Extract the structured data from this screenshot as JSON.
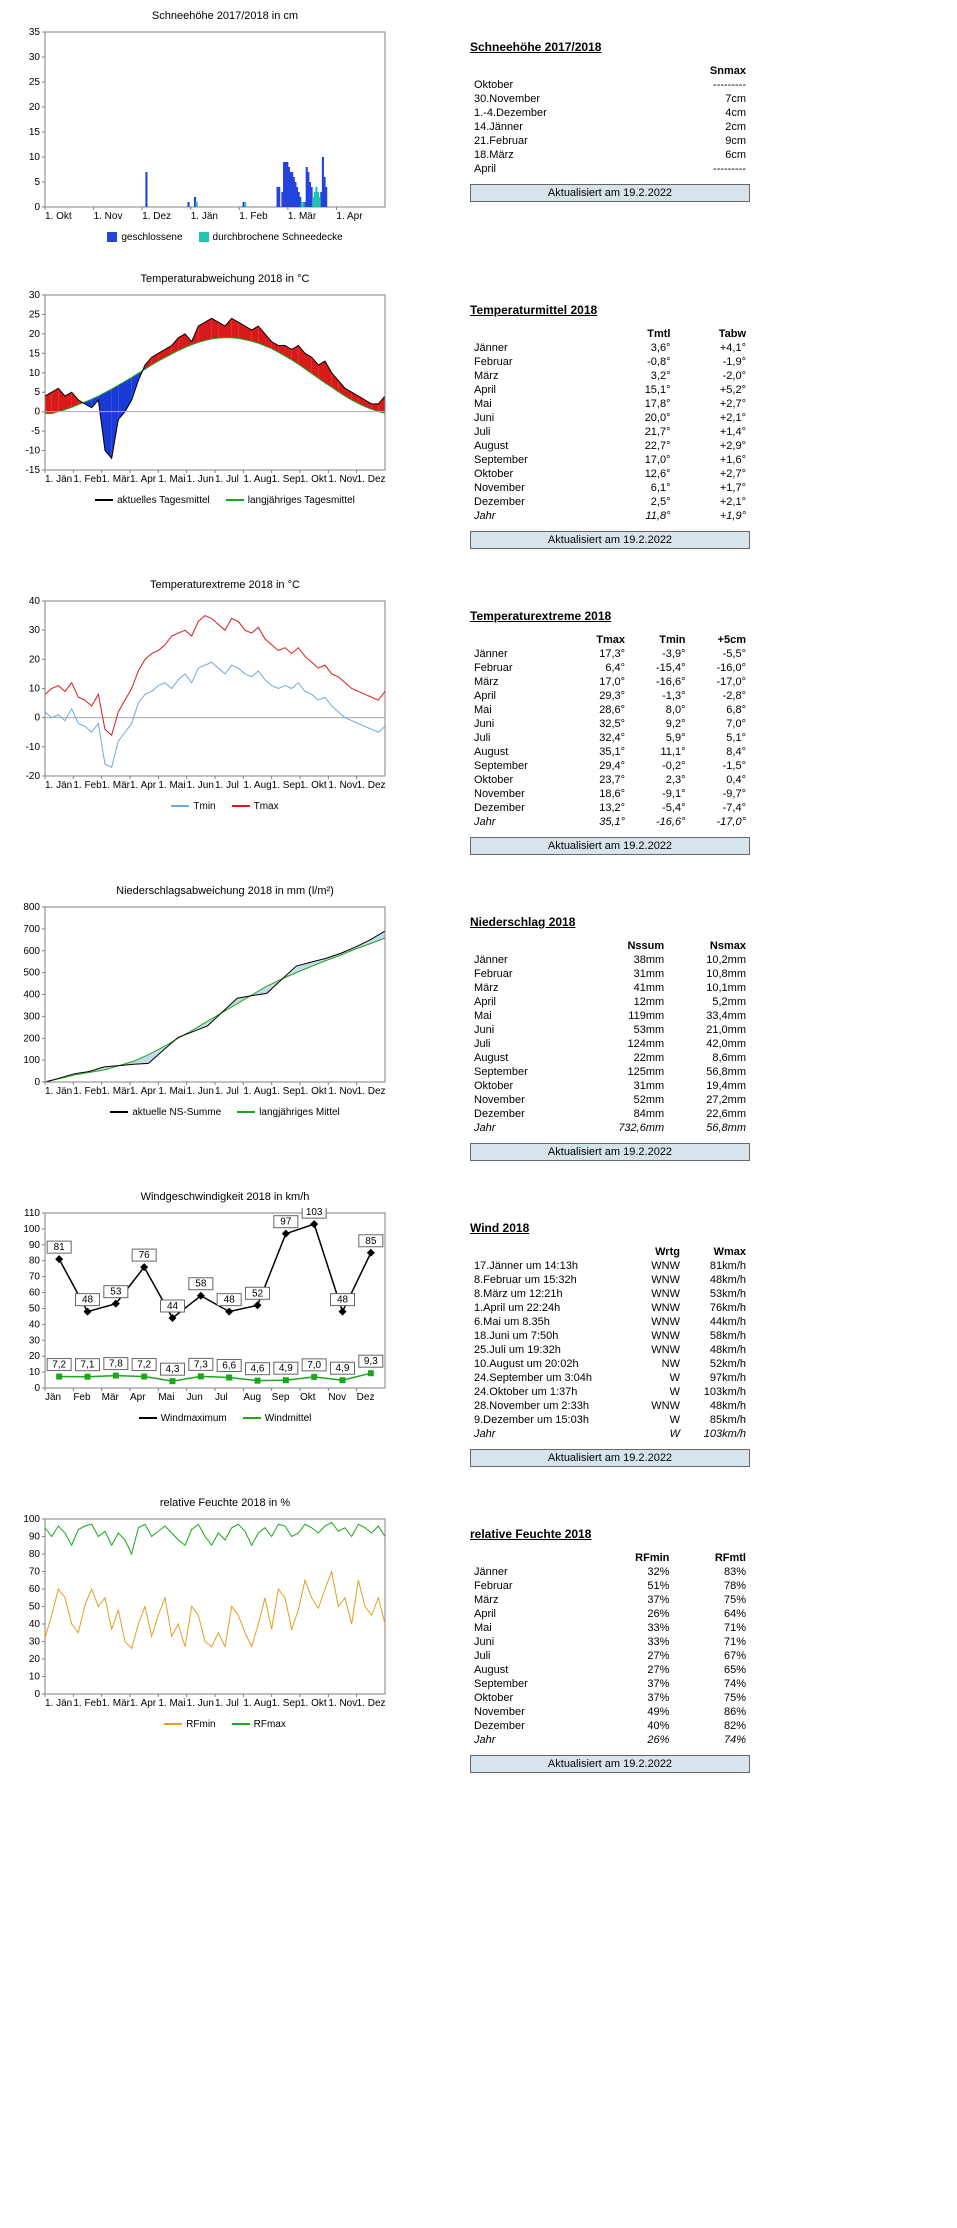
{
  "update_text": "Aktualisiert am 19.2.2022",
  "months_short": [
    "Jän",
    "Feb",
    "Mär",
    "Apr",
    "Mai",
    "Jun",
    "Jul",
    "Aug",
    "Sep",
    "Okt",
    "Nov",
    "Dez"
  ],
  "months_1": [
    "1. Jän",
    "1. Feb",
    "1. Mär",
    "1. Apr",
    "1. Mai",
    "1. Jun",
    "1. Jul",
    "1. Aug",
    "1. Sep",
    "1. Okt",
    "1. Nov",
    "1. Dez"
  ],
  "snow": {
    "chart_title": "Schneehöhe 2017/2018 in cm",
    "ylim": [
      0,
      35
    ],
    "ytick": 5,
    "xlabels": [
      "1. Okt",
      "1. Nov",
      "1. Dez",
      "1. Jän",
      "1. Feb",
      "1. Mär",
      "1. Apr"
    ],
    "closed_color": "#2244dd",
    "broken_color": "#20c4b0",
    "bars_closed": [
      [
        62,
        7
      ],
      [
        88,
        1
      ],
      [
        92,
        2
      ],
      [
        122,
        1
      ],
      [
        143,
        4
      ],
      [
        144,
        4
      ],
      [
        146,
        3
      ],
      [
        147,
        9
      ],
      [
        148,
        9
      ],
      [
        149,
        9
      ],
      [
        150,
        8
      ],
      [
        151,
        7
      ],
      [
        152,
        7
      ],
      [
        153,
        6
      ],
      [
        154,
        5
      ],
      [
        155,
        4
      ],
      [
        156,
        3
      ],
      [
        157,
        2
      ],
      [
        160,
        1
      ],
      [
        161,
        8
      ],
      [
        162,
        7
      ],
      [
        163,
        5
      ],
      [
        164,
        4
      ],
      [
        170,
        3
      ],
      [
        171,
        10
      ],
      [
        172,
        6
      ],
      [
        173,
        4
      ]
    ],
    "bars_broken": [
      [
        93,
        1
      ],
      [
        123,
        1
      ],
      [
        158,
        1
      ],
      [
        159,
        1
      ],
      [
        165,
        2
      ],
      [
        166,
        3
      ],
      [
        167,
        4
      ],
      [
        168,
        3
      ],
      [
        169,
        2
      ]
    ],
    "legend": [
      [
        "geschlossene",
        "#2244dd"
      ],
      [
        "durchbrochene Schneedecke",
        "#20c4b0"
      ]
    ],
    "table_title": "Schneehöhe 2017/2018",
    "cols": [
      "",
      "Snmax"
    ],
    "rows": [
      [
        "Oktober",
        "---------"
      ],
      [
        "30.November",
        "7cm"
      ],
      [
        "1.-4.Dezember",
        "4cm"
      ],
      [
        "14.Jänner",
        "2cm"
      ],
      [
        "21.Februar",
        "9cm"
      ],
      [
        "18.März",
        "6cm"
      ],
      [
        "April",
        "---------"
      ]
    ]
  },
  "tempdev": {
    "chart_title": "Temperaturabweichung  2018 in °C",
    "ylim": [
      -15,
      30
    ],
    "ytick": 5,
    "actual_color": "#000000",
    "avg_color": "#1aa81a",
    "pos_fill": "#d81a1a",
    "neg_fill": "#1a3ad8",
    "normal": [
      -0.5,
      -0.5,
      0,
      0.5,
      1.1,
      1.8,
      2.5,
      3.2,
      4,
      4.9,
      5.8,
      6.8,
      7.8,
      8.8,
      9.9,
      10.9,
      12,
      13,
      13.9,
      14.8,
      15.7,
      16.5,
      17.2,
      17.8,
      18.3,
      18.7,
      18.9,
      19,
      19,
      18.8,
      18.5,
      18.1,
      17.6,
      16.9,
      16.2,
      15.3,
      14.3,
      13.3,
      12.2,
      11,
      9.8,
      8.6,
      7.4,
      6.3,
      5.1,
      4,
      3,
      2.1,
      1.3,
      0.6,
      0,
      -0.4
    ],
    "actual": [
      4,
      5,
      6,
      4,
      5,
      3,
      2,
      1,
      3,
      -10,
      -12,
      -2,
      0,
      3,
      8,
      12,
      14,
      15,
      16,
      17,
      19,
      20,
      18,
      22,
      23,
      24,
      23,
      22,
      24,
      23,
      22,
      21,
      22,
      20,
      18,
      17,
      17,
      16,
      17,
      15,
      14,
      12,
      13,
      10,
      8,
      6,
      5,
      4,
      3,
      2,
      2,
      4
    ],
    "legend": [
      [
        "aktuelles Tagesmittel",
        "#000000"
      ],
      [
        "langjähriges Tagesmittel",
        "#1aa81a"
      ]
    ],
    "table_title": "Temperaturmittel 2018",
    "cols": [
      "",
      "Tmtl",
      "Tabw"
    ],
    "rows": [
      [
        "Jänner",
        "3,6°",
        "+4,1°"
      ],
      [
        "Februar",
        "-0,8°",
        "-1,9°"
      ],
      [
        "März",
        "3,2°",
        "-2,0°"
      ],
      [
        "April",
        "15,1°",
        "+5,2°"
      ],
      [
        "Mai",
        "17,8°",
        "+2,7°"
      ],
      [
        "Juni",
        "20,0°",
        "+2,1°"
      ],
      [
        "Juli",
        "21,7°",
        "+1,4°"
      ],
      [
        "August",
        "22,7°",
        "+2,9°"
      ],
      [
        "September",
        "17,0°",
        "+1,6°"
      ],
      [
        "Oktober",
        "12,6°",
        "+2,7°"
      ],
      [
        "November",
        "6,1°",
        "+1,7°"
      ],
      [
        "Dezember",
        "2,5°",
        "+2,1°"
      ]
    ],
    "total": [
      "Jahr",
      "11,8°",
      "+1,9°"
    ]
  },
  "tempext": {
    "chart_title": "Temperaturextreme  2018 in °C",
    "ylim": [
      -20,
      40
    ],
    "ytick": 10,
    "tmin_color": "#6fa8dc",
    "tmax_color": "#d81a1a",
    "tmin": [
      2,
      0,
      1,
      -1,
      3,
      -2,
      -3,
      -5,
      -2,
      -16,
      -17,
      -8,
      -5,
      -2,
      5,
      8,
      9,
      11,
      12,
      10,
      13,
      15,
      12,
      17,
      18,
      19,
      17,
      15,
      18,
      17,
      15,
      14,
      16,
      13,
      11,
      10,
      11,
      10,
      12,
      9,
      8,
      6,
      7,
      4,
      2,
      0,
      -1,
      -2,
      -3,
      -4,
      -5,
      -3
    ],
    "tmax": [
      8,
      10,
      11,
      9,
      12,
      7,
      6,
      4,
      8,
      -4,
      -6,
      2,
      6,
      10,
      16,
      20,
      22,
      23,
      25,
      28,
      29,
      30,
      28,
      33,
      35,
      34,
      32,
      30,
      34,
      33,
      30,
      29,
      31,
      27,
      25,
      23,
      24,
      22,
      24,
      21,
      19,
      17,
      18,
      15,
      14,
      12,
      10,
      9,
      8,
      7,
      6,
      9
    ],
    "legend": [
      [
        "Tmin",
        "#6fa8dc"
      ],
      [
        "Tmax",
        "#d81a1a"
      ]
    ],
    "table_title": "Temperaturextreme 2018",
    "cols": [
      "",
      "Tmax",
      "Tmin",
      "+5cm"
    ],
    "rows": [
      [
        "Jänner",
        "17,3°",
        "-3,9°",
        "-5,5°"
      ],
      [
        "Februar",
        "6,4°",
        "-15,4°",
        "-16,0°"
      ],
      [
        "März",
        "17,0°",
        "-16,6°",
        "-17,0°"
      ],
      [
        "April",
        "29,3°",
        "-1,3°",
        "-2,8°"
      ],
      [
        "Mai",
        "28,6°",
        "8,0°",
        "6,8°"
      ],
      [
        "Juni",
        "32,5°",
        "9,2°",
        "7,0°"
      ],
      [
        "Juli",
        "32,4°",
        "5,9°",
        "5,1°"
      ],
      [
        "August",
        "35,1°",
        "11,1°",
        "8,4°"
      ],
      [
        "September",
        "29,4°",
        "-0,2°",
        "-1,5°"
      ],
      [
        "Oktober",
        "23,7°",
        "2,3°",
        "0,4°"
      ],
      [
        "November",
        "18,6°",
        "-9,1°",
        "-9,7°"
      ],
      [
        "Dezember",
        "13,2°",
        "-5,4°",
        "-7,4°"
      ]
    ],
    "total": [
      "Jahr",
      "35,1°",
      "-16,6°",
      "-17,0°"
    ]
  },
  "precip": {
    "chart_title": "Niederschlagsabweichung  2018 in  mm (l/m²)",
    "ylim": [
      0,
      800
    ],
    "ytick": 100,
    "actual_color": "#000000",
    "avg_color": "#1aa81a",
    "fill_color": "#c4daeb",
    "cumulative_actual": [
      0,
      18,
      38,
      48,
      69,
      75,
      81,
      85,
      145,
      204,
      230,
      257,
      320,
      383,
      395,
      405,
      468,
      530,
      548,
      565,
      588,
      617,
      650,
      690
    ],
    "cumulative_avg": [
      0,
      16,
      32,
      44,
      55,
      75,
      95,
      125,
      160,
      200,
      238,
      278,
      318,
      358,
      398,
      438,
      470,
      500,
      528,
      555,
      580,
      608,
      632,
      658
    ],
    "legend": [
      [
        "aktuelle NS-Summe",
        "#000000"
      ],
      [
        "langjähriges Mittel",
        "#1aa81a"
      ]
    ],
    "table_title": "Niederschlag 2018",
    "cols": [
      "",
      "Nssum",
      "Nsmax"
    ],
    "rows": [
      [
        "Jänner",
        "38mm",
        "10,2mm"
      ],
      [
        "Februar",
        "31mm",
        "10,8mm"
      ],
      [
        "März",
        "41mm",
        "10,1mm"
      ],
      [
        "April",
        "12mm",
        "5,2mm"
      ],
      [
        "Mai",
        "119mm",
        "33,4mm"
      ],
      [
        "Juni",
        "53mm",
        "21,0mm"
      ],
      [
        "Juli",
        "124mm",
        "42,0mm"
      ],
      [
        "August",
        "22mm",
        "8,6mm"
      ],
      [
        "September",
        "125mm",
        "56,8mm"
      ],
      [
        "Oktober",
        "31mm",
        "19,4mm"
      ],
      [
        "November",
        "52mm",
        "27,2mm"
      ],
      [
        "Dezember",
        "84mm",
        "22,6mm"
      ]
    ],
    "total": [
      "Jahr",
      "732,6mm",
      "56,8mm"
    ]
  },
  "wind": {
    "chart_title": "Windgeschwindigkeit 2018 in km/h",
    "ylim": [
      0,
      110
    ],
    "ytick": 10,
    "max_color": "#000000",
    "avg_color": "#1aa81a",
    "max": [
      81,
      48,
      53,
      76,
      44,
      58,
      48,
      52,
      97,
      103,
      48,
      85
    ],
    "avg": [
      7.2,
      7.1,
      7.8,
      7.2,
      4.3,
      7.3,
      6.6,
      4.6,
      4.9,
      7.0,
      4.9,
      9.3
    ],
    "legend": [
      [
        "Windmaximum",
        "#000000"
      ],
      [
        "Windmittel",
        "#1aa81a"
      ]
    ],
    "table_title": "Wind 2018",
    "cols": [
      "",
      "Wrtg",
      "Wmax"
    ],
    "rows": [
      [
        "17.Jänner um 14:13h",
        "WNW",
        "81km/h"
      ],
      [
        "8.Februar um 15:32h",
        "WNW",
        "48km/h"
      ],
      [
        "8.März um 12:21h",
        "WNW",
        "53km/h"
      ],
      [
        "1.April um 22:24h",
        "WNW",
        "76km/h"
      ],
      [
        "6.Mai um 8.35h",
        "WNW",
        "44km/h"
      ],
      [
        "18.Juni um 7:50h",
        "WNW",
        "58km/h"
      ],
      [
        "25.Juli um 19:32h",
        "WNW",
        "48km/h"
      ],
      [
        "10.August um 20:02h",
        "NW",
        "52km/h"
      ],
      [
        "24.September um 3:04h",
        "W",
        "97km/h"
      ],
      [
        "24.Oktober um 1:37h",
        "W",
        "103km/h"
      ],
      [
        "28.November um 2:33h",
        "WNW",
        "48km/h"
      ],
      [
        "9.Dezember um 15:03h",
        "W",
        "85km/h"
      ]
    ],
    "total": [
      "Jahr",
      "W",
      "103km/h"
    ]
  },
  "humid": {
    "chart_title": "relative Feuchte 2018 in %",
    "ylim": [
      0,
      100
    ],
    "ytick": 10,
    "min_color": "#e0a020",
    "max_color": "#1aa81a",
    "min": [
      32,
      45,
      60,
      55,
      40,
      35,
      51,
      60,
      50,
      55,
      37,
      48,
      30,
      26,
      40,
      50,
      33,
      45,
      55,
      33,
      40,
      27,
      50,
      45,
      30,
      27,
      35,
      27,
      50,
      45,
      35,
      27,
      40,
      55,
      37,
      60,
      55,
      37,
      48,
      65,
      55,
      49,
      60,
      70,
      50,
      55,
      40,
      65,
      50,
      45,
      55,
      40
    ],
    "max": [
      95,
      90,
      96,
      92,
      85,
      94,
      96,
      97,
      90,
      93,
      85,
      92,
      88,
      80,
      95,
      97,
      90,
      93,
      96,
      92,
      88,
      85,
      94,
      97,
      90,
      85,
      92,
      88,
      95,
      97,
      93,
      85,
      92,
      95,
      90,
      97,
      96,
      90,
      92,
      97,
      95,
      92,
      96,
      98,
      93,
      95,
      90,
      97,
      95,
      92,
      96,
      90
    ],
    "legend": [
      [
        "RFmin",
        "#e0a020"
      ],
      [
        "RFmax",
        "#1aa81a"
      ]
    ],
    "table_title": "relative Feuchte 2018",
    "cols": [
      "",
      "RFmin",
      "RFmtl"
    ],
    "rows": [
      [
        "Jänner",
        "32%",
        "83%"
      ],
      [
        "Februar",
        "51%",
        "78%"
      ],
      [
        "März",
        "37%",
        "75%"
      ],
      [
        "April",
        "26%",
        "64%"
      ],
      [
        "Mai",
        "33%",
        "71%"
      ],
      [
        "Juni",
        "33%",
        "71%"
      ],
      [
        "Juli",
        "27%",
        "67%"
      ],
      [
        "August",
        "27%",
        "65%"
      ],
      [
        "September",
        "37%",
        "74%"
      ],
      [
        "Oktober",
        "37%",
        "75%"
      ],
      [
        "November",
        "49%",
        "86%"
      ],
      [
        "Dezember",
        "40%",
        "82%"
      ]
    ],
    "total": [
      "Jahr",
      "26%",
      "74%"
    ]
  }
}
